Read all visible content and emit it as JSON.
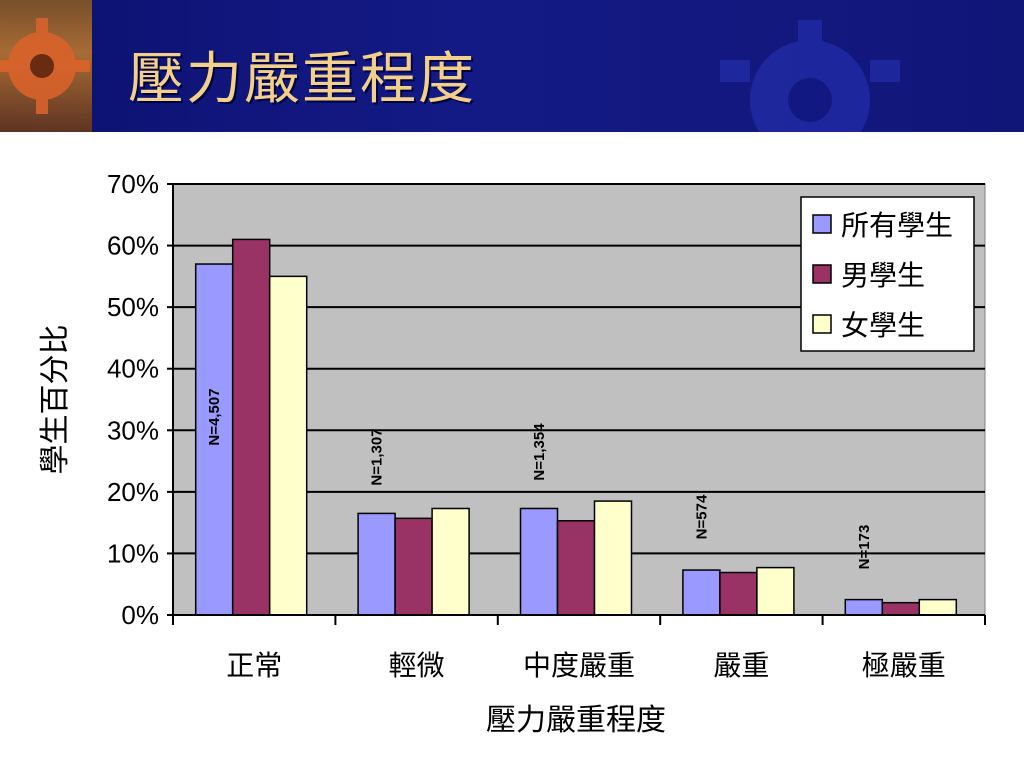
{
  "slide": {
    "title": "壓力嚴重程度"
  },
  "colors": {
    "header_bg": "#0b1170",
    "title": "#f2d089",
    "plot_bg": "#c0c0c0",
    "series_all": "#9999ff",
    "series_male": "#993366",
    "series_female": "#ffffcc"
  },
  "chart_data": {
    "type": "bar",
    "xlabel": "壓力嚴重程度",
    "ylabel": "學生百分比",
    "ylim": [
      0,
      70
    ],
    "y_ticks": [
      "0%",
      "10%",
      "20%",
      "30%",
      "40%",
      "50%",
      "60%",
      "70%"
    ],
    "grid": true,
    "legend_position": "top-right",
    "categories": [
      "正常",
      "輕微",
      "中度嚴重",
      "嚴重",
      "極嚴重"
    ],
    "series": [
      {
        "name": "所有學生",
        "color": "#9999ff",
        "values": [
          57,
          16.5,
          17.3,
          7.3,
          2.5
        ]
      },
      {
        "name": "男學生",
        "color": "#993366",
        "values": [
          61,
          15.7,
          15.3,
          6.9,
          2.0
        ]
      },
      {
        "name": "女學生",
        "color": "#ffffcc",
        "values": [
          55,
          17.3,
          18.5,
          7.7,
          2.5
        ]
      }
    ],
    "annotations": [
      "N=4,507",
      "N=1,307",
      "N=1,354",
      "N=574",
      "N=173"
    ]
  }
}
